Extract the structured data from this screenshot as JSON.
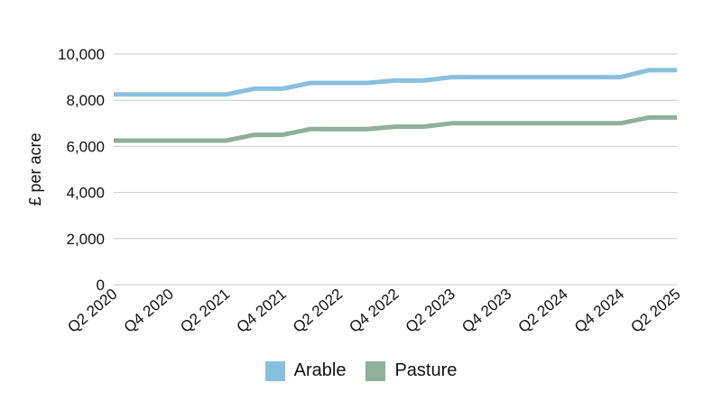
{
  "chart_data": {
    "type": "line",
    "title": "",
    "xlabel": "",
    "ylabel": "£ per acre",
    "ylim": [
      0,
      10000
    ],
    "yticks": [
      0,
      2000,
      4000,
      6000,
      8000,
      10000
    ],
    "ytick_labels": [
      "0",
      "2,000",
      "4,000",
      "6,000",
      "8,000",
      "10,000"
    ],
    "x": [
      "Q2 2020",
      "Q3 2020",
      "Q4 2020",
      "Q1 2021",
      "Q2 2021",
      "Q3 2021",
      "Q4 2021",
      "Q1 2022",
      "Q2 2022",
      "Q3 2022",
      "Q4 2022",
      "Q1 2023",
      "Q2 2023",
      "Q3 2023",
      "Q4 2023",
      "Q1 2024",
      "Q2 2024",
      "Q3 2024",
      "Q4 2024",
      "Q1 2025",
      "Q2 2025"
    ],
    "xtick_labels": [
      "Q2 2020",
      "Q4 2020",
      "Q2 2021",
      "Q4 2021",
      "Q2 2022",
      "Q4 2022",
      "Q2 2023",
      "Q4 2023",
      "Q2 2024",
      "Q4 2024",
      "Q2 2025"
    ],
    "grid": true,
    "legend_position": "bottom-center",
    "series": [
      {
        "name": "Arable",
        "color": "#88c0de",
        "values": [
          8250,
          8250,
          8250,
          8250,
          8250,
          8500,
          8500,
          8750,
          8750,
          8750,
          8850,
          8850,
          9000,
          9000,
          9000,
          9000,
          9000,
          9000,
          9000,
          9300,
          9300
        ]
      },
      {
        "name": "Pasture",
        "color": "#8faf9a",
        "values": [
          6250,
          6250,
          6250,
          6250,
          6250,
          6500,
          6500,
          6750,
          6750,
          6750,
          6850,
          6850,
          7000,
          7000,
          7000,
          7000,
          7000,
          7000,
          7000,
          7250,
          7250
        ]
      }
    ]
  }
}
